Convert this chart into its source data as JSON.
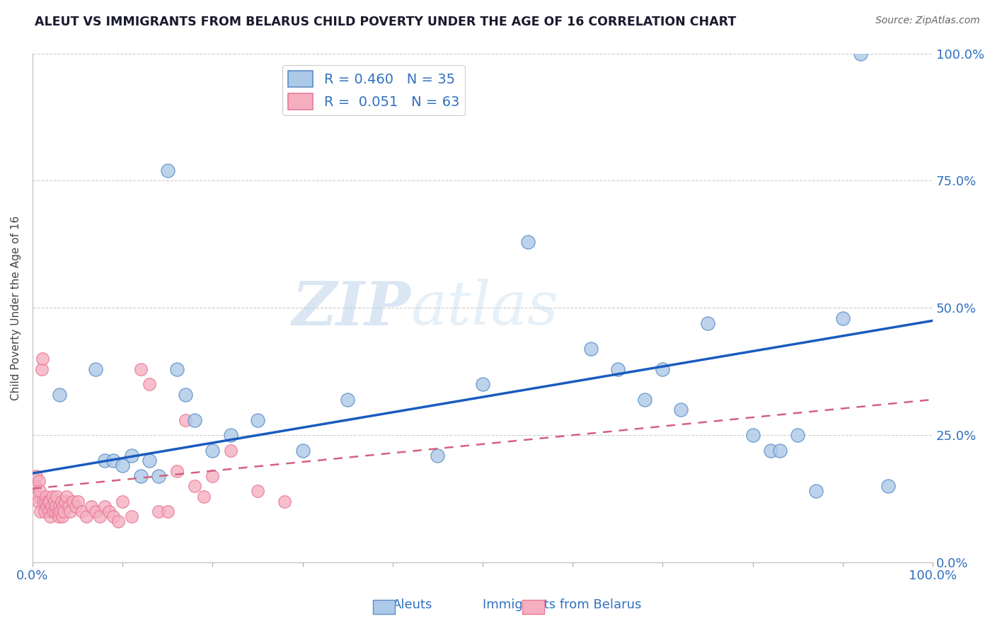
{
  "title": "ALEUT VS IMMIGRANTS FROM BELARUS CHILD POVERTY UNDER THE AGE OF 16 CORRELATION CHART",
  "source": "Source: ZipAtlas.com",
  "ylabel": "Child Poverty Under the Age of 16",
  "watermark_zip": "ZIP",
  "watermark_atlas": "atlas",
  "xlim": [
    0.0,
    1.0
  ],
  "ylim": [
    0.0,
    1.0
  ],
  "legend_r1": "R = 0.460",
  "legend_n1": "N = 35",
  "legend_r2": "R =  0.051",
  "legend_n2": "N = 63",
  "aleuts_color": "#adc9e8",
  "belarus_color": "#f5afc0",
  "aleuts_edge_color": "#5b8ec4",
  "belarus_edge_color": "#e8789a",
  "aleuts_line_color": "#1a5bbf",
  "belarus_line_color": "#d46080",
  "title_color": "#1a1a2e",
  "label_color": "#3070c0",
  "grid_color": "#cccccc",
  "aleuts_x": [
    0.03,
    0.07,
    0.08,
    0.09,
    0.1,
    0.11,
    0.12,
    0.13,
    0.14,
    0.15,
    0.16,
    0.17,
    0.18,
    0.2,
    0.22,
    0.25,
    0.3,
    0.35,
    0.45,
    0.5,
    0.55,
    0.62,
    0.65,
    0.68,
    0.7,
    0.72,
    0.75,
    0.8,
    0.82,
    0.83,
    0.85,
    0.87,
    0.9,
    0.92,
    0.95
  ],
  "aleuts_y": [
    0.33,
    0.38,
    0.2,
    0.2,
    0.19,
    0.21,
    0.17,
    0.2,
    0.17,
    0.77,
    0.38,
    0.33,
    0.28,
    0.22,
    0.25,
    0.28,
    0.22,
    0.32,
    0.21,
    0.35,
    0.63,
    0.42,
    0.38,
    0.32,
    0.38,
    0.3,
    0.47,
    0.25,
    0.22,
    0.22,
    0.25,
    0.14,
    0.48,
    1.0,
    0.15
  ],
  "belarus_x": [
    0.003,
    0.004,
    0.005,
    0.006,
    0.007,
    0.008,
    0.009,
    0.01,
    0.011,
    0.012,
    0.013,
    0.014,
    0.015,
    0.016,
    0.017,
    0.018,
    0.019,
    0.02,
    0.021,
    0.022,
    0.023,
    0.024,
    0.025,
    0.026,
    0.027,
    0.028,
    0.029,
    0.03,
    0.031,
    0.032,
    0.033,
    0.034,
    0.035,
    0.036,
    0.038,
    0.04,
    0.042,
    0.045,
    0.048,
    0.05,
    0.055,
    0.06,
    0.065,
    0.07,
    0.075,
    0.08,
    0.085,
    0.09,
    0.095,
    0.1,
    0.11,
    0.12,
    0.13,
    0.14,
    0.15,
    0.16,
    0.17,
    0.18,
    0.19,
    0.2,
    0.22,
    0.25,
    0.28
  ],
  "belarus_y": [
    0.15,
    0.17,
    0.13,
    0.12,
    0.16,
    0.14,
    0.1,
    0.38,
    0.4,
    0.12,
    0.1,
    0.12,
    0.13,
    0.11,
    0.12,
    0.1,
    0.12,
    0.09,
    0.11,
    0.13,
    0.1,
    0.12,
    0.1,
    0.11,
    0.13,
    0.1,
    0.09,
    0.11,
    0.1,
    0.12,
    0.09,
    0.11,
    0.1,
    0.12,
    0.13,
    0.11,
    0.1,
    0.12,
    0.11,
    0.12,
    0.1,
    0.09,
    0.11,
    0.1,
    0.09,
    0.11,
    0.1,
    0.09,
    0.08,
    0.12,
    0.09,
    0.38,
    0.35,
    0.1,
    0.1,
    0.18,
    0.28,
    0.15,
    0.13,
    0.17,
    0.22,
    0.14,
    0.12
  ],
  "aleuts_line_x0": 0.0,
  "aleuts_line_y0": 0.175,
  "aleuts_line_x1": 1.0,
  "aleuts_line_y1": 0.475,
  "belarus_line_x0": 0.0,
  "belarus_line_y0": 0.145,
  "belarus_line_x1": 1.0,
  "belarus_line_y1": 0.32
}
